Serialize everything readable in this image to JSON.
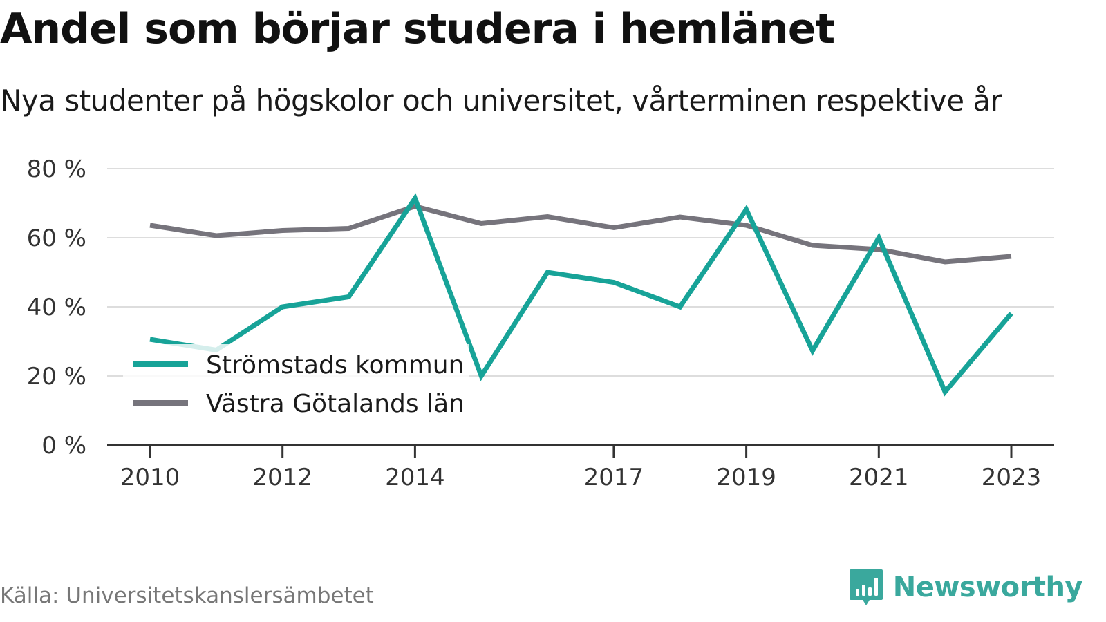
{
  "title": "Andel som börjar studera i hemlänet",
  "subtitle": "Nya studenter på högskolor och universitet, vårterminen respektive år",
  "source": "Källa: Universitetskanslersämbetet",
  "brand": "Newsworthy",
  "colors": {
    "series_primary": "#17a398",
    "series_secondary": "#76747c",
    "grid": "#dddddd",
    "axis": "#333333",
    "brand": "#3aa89d"
  },
  "chart_data": {
    "type": "line",
    "x": [
      2010,
      2011,
      2012,
      2013,
      2014,
      2015,
      2016,
      2017,
      2018,
      2019,
      2020,
      2021,
      2022,
      2023
    ],
    "x_tick_labels": [
      "2010",
      "2012",
      "2014",
      "2017",
      "2019",
      "2021",
      "2023"
    ],
    "y_tick_labels": [
      "0 %",
      "20 %",
      "40 %",
      "60 %",
      "80 %"
    ],
    "y_ticks": [
      0,
      20,
      40,
      60,
      80
    ],
    "ylim": [
      0,
      80
    ],
    "xlim": [
      2010,
      2023
    ],
    "grid": true,
    "legend_position": "bottom-left",
    "series": [
      {
        "name": "Strömstads kommun",
        "color": "#17a398",
        "values": [
          30.6,
          27.5,
          40.0,
          42.9,
          71.4,
          20.0,
          50.0,
          47.1,
          40.0,
          68.2,
          27.3,
          60.0,
          15.4,
          38.1
        ]
      },
      {
        "name": "Västra Götalands län",
        "color": "#76747c",
        "values": [
          63.6,
          60.6,
          62.1,
          62.7,
          69.1,
          64.1,
          66.1,
          62.9,
          66.0,
          63.6,
          57.8,
          56.6,
          53.0,
          54.6
        ]
      }
    ]
  }
}
